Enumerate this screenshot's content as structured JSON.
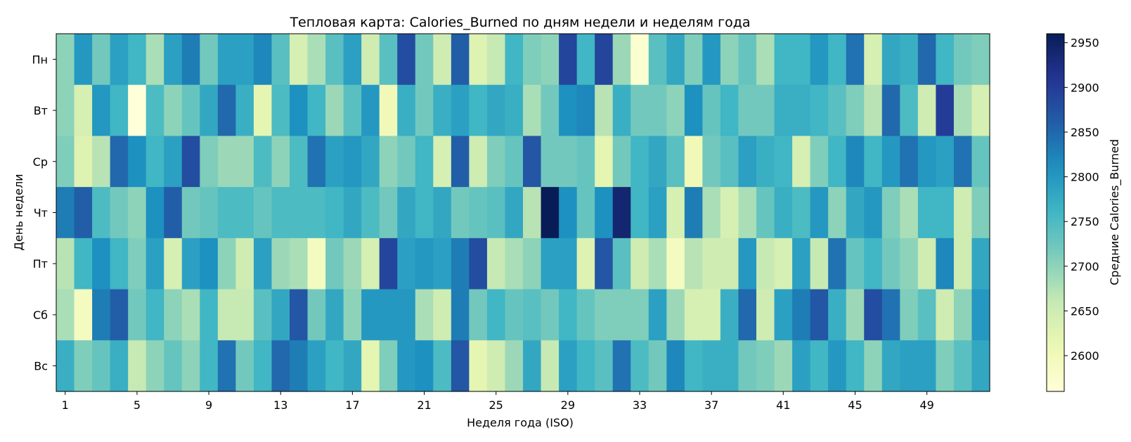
{
  "chart_data": {
    "type": "heatmap",
    "title": "Тепловая карта: Calories_Burned по дням недели и неделям года",
    "xlabel": "Неделя года (ISO)",
    "ylabel": "День недели",
    "colorbar_label": "Средние Calories_Burned",
    "x_categories": [
      1,
      2,
      3,
      4,
      5,
      6,
      7,
      8,
      9,
      10,
      11,
      12,
      13,
      14,
      15,
      16,
      17,
      18,
      19,
      20,
      21,
      22,
      23,
      24,
      25,
      26,
      27,
      28,
      29,
      30,
      31,
      32,
      33,
      34,
      35,
      36,
      37,
      38,
      39,
      40,
      41,
      42,
      43,
      44,
      45,
      46,
      47,
      48,
      49,
      50,
      51,
      52
    ],
    "x_tick_labels": [
      "1",
      "5",
      "9",
      "13",
      "17",
      "21",
      "25",
      "29",
      "33",
      "37",
      "41",
      "45",
      "49"
    ],
    "y_categories": [
      "Пн",
      "Вт",
      "Ср",
      "Чт",
      "Пт",
      "Сб",
      "Вс"
    ],
    "colorbar_ticks": [
      2600,
      2650,
      2700,
      2750,
      2800,
      2850,
      2900,
      2950
    ],
    "vmin": 2560,
    "vmax": 2960,
    "colormap": "YlGnBu",
    "values": [
      [
        2700,
        2800,
        2720,
        2790,
        2760,
        2680,
        2790,
        2830,
        2720,
        2790,
        2790,
        2820,
        2740,
        2640,
        2680,
        2740,
        2790,
        2650,
        2740,
        2880,
        2720,
        2650,
        2860,
        2630,
        2660,
        2760,
        2710,
        2700,
        2890,
        2760,
        2890,
        2690,
        2570,
        2740,
        2780,
        2710,
        2800,
        2700,
        2730,
        2680,
        2760,
        2760,
        2800,
        2760,
        2840,
        2640,
        2780,
        2770,
        2850,
        2760,
        2720,
        2710
      ],
      [
        2700,
        2640,
        2800,
        2760,
        2560,
        2750,
        2700,
        2730,
        2780,
        2850,
        2770,
        2620,
        2750,
        2810,
        2760,
        2690,
        2740,
        2800,
        2600,
        2770,
        2720,
        2770,
        2790,
        2760,
        2780,
        2770,
        2680,
        2720,
        2810,
        2820,
        2670,
        2770,
        2720,
        2720,
        2700,
        2810,
        2730,
        2760,
        2720,
        2720,
        2770,
        2770,
        2760,
        2740,
        2710,
        2670,
        2850,
        2750,
        2650,
        2900,
        2680,
        2640
      ],
      [
        2710,
        2630,
        2670,
        2850,
        2810,
        2760,
        2790,
        2880,
        2710,
        2690,
        2690,
        2750,
        2700,
        2750,
        2840,
        2790,
        2800,
        2780,
        2700,
        2720,
        2760,
        2640,
        2860,
        2650,
        2710,
        2730,
        2870,
        2720,
        2720,
        2730,
        2620,
        2720,
        2760,
        2780,
        2740,
        2600,
        2720,
        2740,
        2790,
        2770,
        2760,
        2640,
        2710,
        2760,
        2820,
        2760,
        2800,
        2840,
        2800,
        2790,
        2840,
        2730
      ],
      [
        2830,
        2860,
        2750,
        2720,
        2700,
        2810,
        2860,
        2720,
        2730,
        2750,
        2750,
        2730,
        2750,
        2750,
        2750,
        2760,
        2780,
        2750,
        2720,
        2780,
        2760,
        2780,
        2720,
        2730,
        2740,
        2780,
        2670,
        2960,
        2810,
        2730,
        2810,
        2940,
        2760,
        2790,
        2640,
        2830,
        2680,
        2640,
        2680,
        2730,
        2770,
        2750,
        2800,
        2700,
        2780,
        2800,
        2710,
        2680,
        2760,
        2760,
        2650,
        2710
      ],
      [
        2670,
        2760,
        2810,
        2760,
        2710,
        2790,
        2640,
        2790,
        2810,
        2700,
        2650,
        2790,
        2690,
        2680,
        2590,
        2720,
        2690,
        2640,
        2890,
        2790,
        2800,
        2790,
        2830,
        2880,
        2660,
        2680,
        2700,
        2790,
        2790,
        2630,
        2870,
        2740,
        2650,
        2680,
        2590,
        2670,
        2650,
        2650,
        2800,
        2660,
        2640,
        2790,
        2660,
        2840,
        2730,
        2760,
        2720,
        2700,
        2650,
        2820,
        2650,
        2780
      ],
      [
        2680,
        2590,
        2830,
        2860,
        2720,
        2760,
        2700,
        2680,
        2760,
        2660,
        2660,
        2740,
        2780,
        2870,
        2720,
        2780,
        2700,
        2800,
        2800,
        2800,
        2680,
        2650,
        2830,
        2720,
        2760,
        2730,
        2740,
        2720,
        2760,
        2730,
        2710,
        2710,
        2710,
        2790,
        2690,
        2640,
        2640,
        2770,
        2850,
        2650,
        2790,
        2830,
        2870,
        2770,
        2690,
        2880,
        2840,
        2710,
        2740,
        2650,
        2700,
        2800
      ],
      [
        2770,
        2710,
        2730,
        2770,
        2660,
        2700,
        2730,
        2700,
        2760,
        2840,
        2720,
        2760,
        2850,
        2830,
        2790,
        2760,
        2780,
        2620,
        2710,
        2800,
        2810,
        2750,
        2870,
        2620,
        2650,
        2690,
        2780,
        2660,
        2790,
        2760,
        2740,
        2840,
        2750,
        2720,
        2820,
        2760,
        2770,
        2770,
        2720,
        2710,
        2690,
        2790,
        2760,
        2800,
        2760,
        2700,
        2780,
        2790,
        2790,
        2710,
        2740,
        2780
      ]
    ]
  }
}
